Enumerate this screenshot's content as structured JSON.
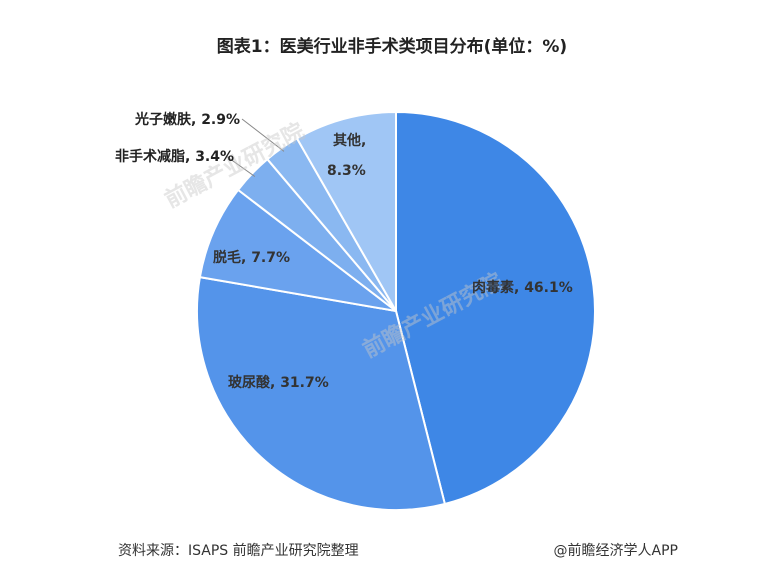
{
  "chart_data": {
    "type": "pie",
    "title": "图表1：医美行业非手术类项目分布(单位：%)",
    "slices": [
      {
        "name": "肉毒素",
        "value": 46.1,
        "label": "肉毒素, 46.1%",
        "color": "#3e87e6"
      },
      {
        "name": "玻尿酸",
        "value": 31.7,
        "label": "玻尿酸, 31.7%",
        "color": "#5494ea"
      },
      {
        "name": "脱毛",
        "value": 7.7,
        "label": "脱毛, 7.7%",
        "color": "#6aa2ee"
      },
      {
        "name": "非手术减脂",
        "value": 3.4,
        "label": "非手术减脂, 3.4%",
        "color": "#7dafef"
      },
      {
        "name": "光子嫩肤",
        "value": 2.9,
        "label": "光子嫩肤, 2.9%",
        "color": "#8ab8f1"
      },
      {
        "name": "其他",
        "value": 8.3,
        "label_line1": "其他,",
        "label_line2": "8.3%",
        "color": "#a0c6f5"
      }
    ]
  },
  "footer": {
    "source": "资料来源：ISAPS 前瞻产业研究院整理",
    "credit": "@前瞻经济学人APP"
  },
  "watermark": {
    "text": "前瞻产业研究院"
  }
}
